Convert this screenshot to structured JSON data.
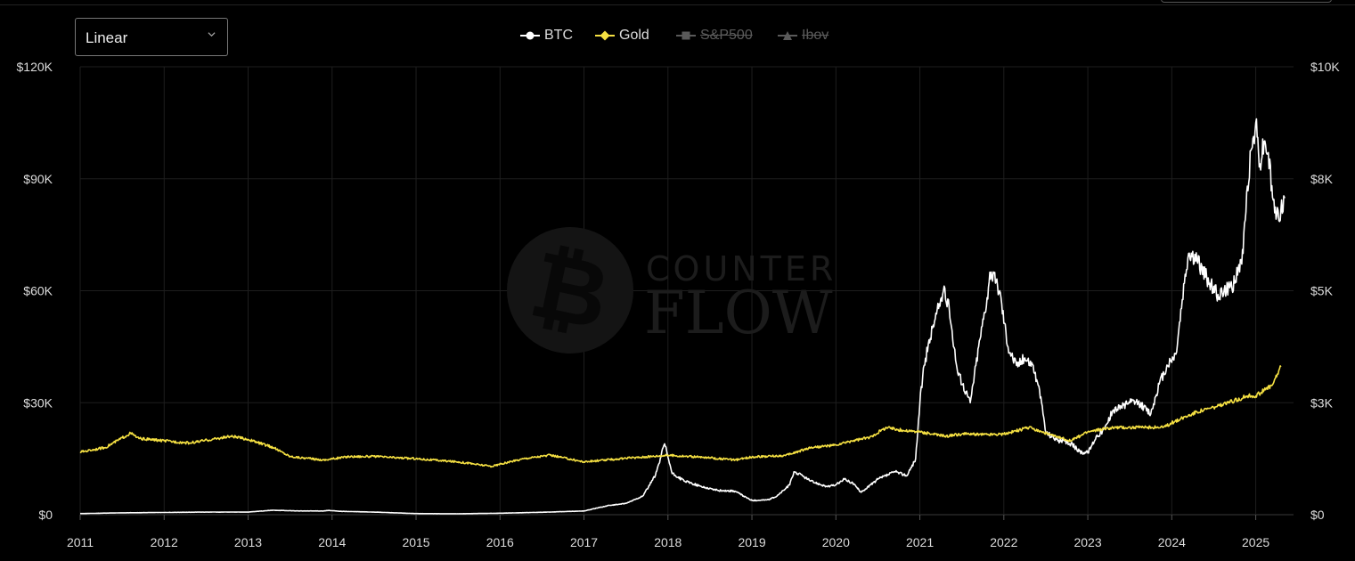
{
  "scale_selector": {
    "value": "Linear"
  },
  "legend": [
    {
      "name": "BTC",
      "color": "#ffffff",
      "marker": "circle",
      "hidden": false
    },
    {
      "name": "Gold",
      "color": "#f5e042",
      "marker": "diamond",
      "hidden": false
    },
    {
      "name": "S&P500",
      "color": "#5a5a5a",
      "marker": "square",
      "hidden": true
    },
    {
      "name": "Ibov",
      "color": "#5a5a5a",
      "marker": "triangle",
      "hidden": true
    }
  ],
  "watermark": {
    "line1": "COUNTER",
    "line2": "FLOW"
  },
  "chart_data": {
    "type": "line",
    "x_range": [
      2011.0,
      2025.45
    ],
    "x_ticks": [
      "2011",
      "2012",
      "2013",
      "2014",
      "2015",
      "2016",
      "2017",
      "2018",
      "2019",
      "2020",
      "2021",
      "2022",
      "2023",
      "2024",
      "2025"
    ],
    "y_left": {
      "min": 0,
      "max": 120000,
      "ticks": [
        "$0",
        "$30K",
        "$60K",
        "$90K",
        "$120K"
      ]
    },
    "y_right": {
      "min": 0,
      "max": 10000,
      "ticks": [
        "$0",
        "$3K",
        "$5K",
        "$8K",
        "$10K"
      ]
    },
    "grid": true,
    "legend_position": "top-center",
    "series": [
      {
        "name": "BTC",
        "axis": "left",
        "color": "#ffffff",
        "x": [
          2011.0,
          2011.5,
          2012.0,
          2012.5,
          2013.0,
          2013.3,
          2013.6,
          2013.9,
          2013.95,
          2014.1,
          2014.5,
          2015.0,
          2015.5,
          2016.0,
          2016.5,
          2017.0,
          2017.3,
          2017.5,
          2017.7,
          2017.85,
          2017.96,
          2018.05,
          2018.2,
          2018.4,
          2018.6,
          2018.8,
          2018.9,
          2019.0,
          2019.2,
          2019.3,
          2019.45,
          2019.5,
          2019.6,
          2019.7,
          2019.9,
          2020.0,
          2020.1,
          2020.2,
          2020.3,
          2020.5,
          2020.7,
          2020.85,
          2020.95,
          2021.0,
          2021.05,
          2021.15,
          2021.28,
          2021.35,
          2021.45,
          2021.55,
          2021.6,
          2021.7,
          2021.85,
          2021.95,
          2022.05,
          2022.15,
          2022.25,
          2022.35,
          2022.45,
          2022.5,
          2022.65,
          2022.8,
          2022.9,
          2023.0,
          2023.1,
          2023.2,
          2023.3,
          2023.5,
          2023.6,
          2023.75,
          2023.85,
          2023.95,
          2024.05,
          2024.15,
          2024.2,
          2024.3,
          2024.45,
          2024.55,
          2024.65,
          2024.75,
          2024.85,
          2024.9,
          2024.95,
          2025.0,
          2025.05,
          2025.1,
          2025.15,
          2025.2,
          2025.25,
          2025.3,
          2025.35
        ],
        "y": [
          300,
          500,
          600,
          700,
          700,
          1200,
          1000,
          1000,
          1150,
          900,
          700,
          300,
          250,
          400,
          650,
          1000,
          2500,
          3000,
          5000,
          10500,
          19000,
          11000,
          9000,
          7500,
          6500,
          6300,
          5000,
          3800,
          4000,
          5000,
          8000,
          11500,
          10500,
          9000,
          7500,
          8000,
          9500,
          8500,
          6000,
          9500,
          11500,
          10500,
          15000,
          30000,
          40000,
          50000,
          60000,
          55000,
          38000,
          33000,
          30000,
          45000,
          65000,
          60000,
          45000,
          40000,
          42000,
          40000,
          30000,
          22000,
          20000,
          19000,
          17000,
          16500,
          21000,
          23000,
          28000,
          30000,
          30000,
          27000,
          35000,
          40000,
          43000,
          62000,
          70000,
          68000,
          62000,
          59000,
          60000,
          62000,
          70000,
          88000,
          98000,
          105000,
          94000,
          100000,
          97000,
          85000,
          80000,
          82000,
          85000
        ]
      },
      {
        "name": "Gold",
        "axis": "right",
        "color": "#f5e042",
        "x": [
          2011.0,
          2011.3,
          2011.6,
          2011.7,
          2012.0,
          2012.3,
          2012.8,
          2013.0,
          2013.3,
          2013.5,
          2013.9,
          2014.2,
          2014.5,
          2015.0,
          2015.5,
          2015.9,
          2016.3,
          2016.6,
          2017.0,
          2017.5,
          2018.0,
          2018.5,
          2018.8,
          2019.0,
          2019.4,
          2019.7,
          2020.0,
          2020.2,
          2020.4,
          2020.6,
          2020.8,
          2021.0,
          2021.3,
          2021.5,
          2021.8,
          2022.0,
          2022.3,
          2022.6,
          2022.8,
          2023.0,
          2023.3,
          2023.6,
          2023.9,
          2024.0,
          2024.3,
          2024.6,
          2024.9,
          2025.0,
          2025.2,
          2025.3
        ],
        "y": [
          1400,
          1500,
          1820,
          1700,
          1650,
          1600,
          1750,
          1680,
          1500,
          1300,
          1220,
          1300,
          1300,
          1250,
          1180,
          1080,
          1260,
          1330,
          1180,
          1260,
          1330,
          1270,
          1220,
          1290,
          1320,
          1500,
          1550,
          1650,
          1720,
          1950,
          1880,
          1850,
          1750,
          1800,
          1790,
          1800,
          1950,
          1750,
          1650,
          1850,
          1950,
          1950,
          1950,
          2050,
          2300,
          2450,
          2650,
          2650,
          2900,
          3300
        ]
      },
      {
        "name": "S&P500",
        "axis": "right",
        "hidden": true
      },
      {
        "name": "Ibov",
        "axis": "right",
        "hidden": true
      }
    ]
  }
}
